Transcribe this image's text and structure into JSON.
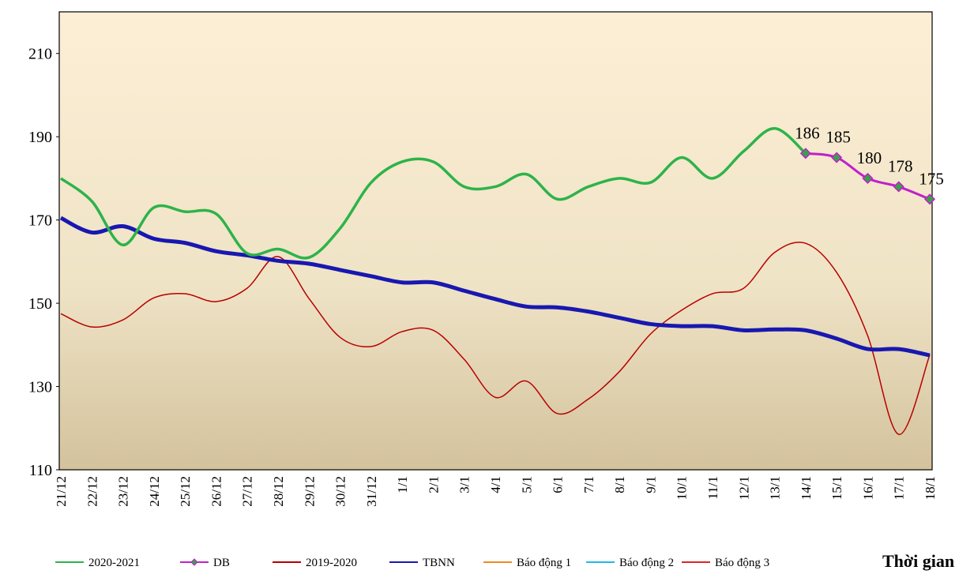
{
  "chart_data": {
    "type": "line",
    "x_label": "Thời gian",
    "categories": [
      "21/12",
      "22/12",
      "23/12",
      "24/12",
      "25/12",
      "26/12",
      "27/12",
      "28/12",
      "29/12",
      "30/12",
      "31/12",
      "1/1",
      "2/1",
      "3/1",
      "4/1",
      "5/1",
      "6/1",
      "7/1",
      "8/1",
      "9/1",
      "10/1",
      "11/1",
      "12/1",
      "13/1",
      "14/1",
      "15/1",
      "16/1",
      "17/1",
      "18/1"
    ],
    "ylim": [
      110,
      220
    ],
    "yticks": [
      110,
      130,
      150,
      170,
      190,
      210
    ],
    "series": [
      {
        "name": "2020-2021",
        "color": "#2db34a",
        "values": [
          180,
          174.5,
          164,
          173,
          172,
          171.5,
          162,
          163,
          161,
          168,
          179,
          184,
          184,
          178,
          178,
          181,
          175,
          178,
          180,
          179,
          185,
          180,
          186.5,
          192,
          186,
          null,
          null,
          null,
          null
        ]
      },
      {
        "name": "DB",
        "color": "#c020c8",
        "marker_color": "#3aa04a",
        "values": [
          null,
          null,
          null,
          null,
          null,
          null,
          null,
          null,
          null,
          null,
          null,
          null,
          null,
          null,
          null,
          null,
          null,
          null,
          null,
          null,
          null,
          null,
          null,
          null,
          186,
          185,
          180,
          178,
          175
        ]
      },
      {
        "name": "2019-2020",
        "color": "#b80000",
        "values": [
          147.5,
          144.3,
          146,
          151.3,
          152.3,
          150.4,
          153.6,
          161.2,
          151.1,
          141.8,
          139.6,
          143.2,
          143.5,
          136.5,
          127.4,
          131.3,
          123.5,
          127,
          133.6,
          142.6,
          148.3,
          152.3,
          153.6,
          162.2,
          164.4,
          157.4,
          142.2,
          118.5,
          137.6
        ]
      },
      {
        "name": "TBNN",
        "color": "#1818b0",
        "values": [
          170.5,
          167,
          168.5,
          165.5,
          164.5,
          162.5,
          161.5,
          160.2,
          159.5,
          158,
          156.5,
          155,
          155,
          153,
          151,
          149.2,
          149,
          148,
          146.5,
          145,
          144.5,
          144.5,
          143.5,
          143.7,
          143.5,
          141.5,
          139,
          139,
          137.5
        ]
      },
      {
        "name": "Báo động 1",
        "color": "#f08a24",
        "values": [
          null,
          null,
          null,
          null,
          null,
          null,
          null,
          null,
          null,
          null,
          null,
          null,
          null,
          null,
          null,
          null,
          null,
          null,
          null,
          null,
          null,
          null,
          null,
          null,
          null,
          null,
          null,
          null,
          null
        ]
      },
      {
        "name": "Báo động 2",
        "color": "#20b8e8",
        "values": [
          null,
          null,
          null,
          null,
          null,
          null,
          null,
          null,
          null,
          null,
          null,
          null,
          null,
          null,
          null,
          null,
          null,
          null,
          null,
          null,
          null,
          null,
          null,
          null,
          null,
          null,
          null,
          null,
          null
        ]
      },
      {
        "name": "Báo động 3",
        "color": "#e02424",
        "values": [
          null,
          null,
          null,
          null,
          null,
          null,
          null,
          null,
          null,
          null,
          null,
          null,
          null,
          null,
          null,
          null,
          null,
          null,
          null,
          null,
          null,
          null,
          null,
          null,
          null,
          null,
          null,
          null,
          null
        ]
      }
    ]
  }
}
